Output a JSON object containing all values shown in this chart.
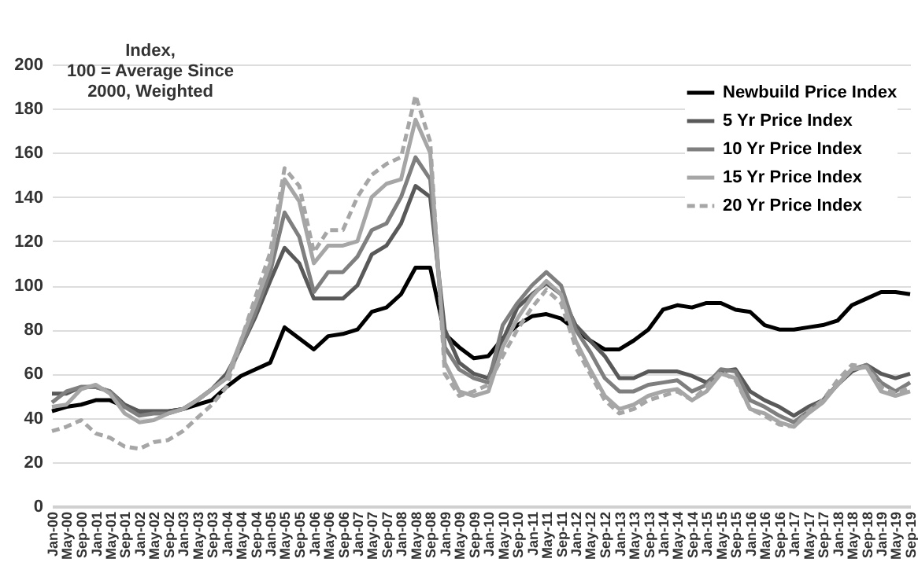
{
  "chart_data": {
    "type": "line",
    "ylabel": "Index,\n100 = Average Since\n2000, Weighted",
    "x": [
      "2000-01",
      "2000-05",
      "2000-09",
      "2001-01",
      "2001-05",
      "2001-09",
      "2002-01",
      "2002-05",
      "2002-09",
      "2003-01",
      "2003-05",
      "2003-09",
      "2004-01",
      "2004-05",
      "2004-09",
      "2005-01",
      "2005-05",
      "2005-09",
      "2006-01",
      "2006-05",
      "2006-09",
      "2007-01",
      "2007-05",
      "2007-09",
      "2008-01",
      "2008-05",
      "2008-09",
      "2009-01",
      "2009-05",
      "2009-09",
      "2010-01",
      "2010-05",
      "2010-09",
      "2011-01",
      "2011-05",
      "2011-09",
      "2012-01",
      "2012-05",
      "2012-09",
      "2013-01",
      "2013-05",
      "2013-09",
      "2014-01",
      "2014-05",
      "2014-09",
      "2015-01",
      "2015-05",
      "2015-09",
      "2016-01",
      "2016-05",
      "2016-09",
      "2017-01",
      "2017-05",
      "2017-09",
      "2018-01",
      "2018-05",
      "2018-09",
      "2019-01",
      "2019-05",
      "2019-09"
    ],
    "series": [
      {
        "name": "Newbuild Price Index",
        "color": "#000000",
        "line_style": "solid",
        "values": [
          43,
          45,
          46,
          48,
          48,
          45,
          43,
          43,
          43,
          44,
          46,
          48,
          54,
          59,
          62,
          65,
          81,
          76,
          71,
          77,
          78,
          80,
          88,
          90,
          96,
          108,
          108,
          78,
          72,
          67,
          68,
          76,
          82,
          86,
          87,
          85,
          80,
          75,
          71,
          71,
          75,
          80,
          89,
          91,
          90,
          92,
          92,
          89,
          88,
          82,
          80,
          80,
          81,
          82,
          84,
          91,
          94,
          97,
          97,
          96
        ]
      },
      {
        "name": "5 Yr Price Index",
        "color": "#595959",
        "line_style": "solid",
        "values": [
          51,
          51,
          54,
          54,
          52,
          46,
          43,
          43,
          43,
          44,
          48,
          53,
          60,
          72,
          86,
          102,
          117,
          110,
          94,
          94,
          94,
          100,
          114,
          118,
          128,
          145,
          140,
          80,
          65,
          60,
          58,
          75,
          90,
          96,
          101,
          96,
          82,
          75,
          68,
          58,
          58,
          61,
          61,
          61,
          59,
          56,
          61,
          62,
          52,
          48,
          45,
          41,
          45,
          48,
          55,
          61,
          64,
          60,
          58,
          60
        ]
      },
      {
        "name": "10 Yr Price Index",
        "color": "#7f7f7f",
        "line_style": "solid",
        "values": [
          47,
          52,
          54,
          54,
          52,
          45,
          41,
          42,
          42,
          44,
          48,
          53,
          58,
          72,
          88,
          106,
          133,
          122,
          97,
          106,
          106,
          113,
          125,
          128,
          140,
          158,
          148,
          72,
          62,
          58,
          56,
          82,
          92,
          100,
          106,
          100,
          80,
          70,
          58,
          52,
          52,
          55,
          56,
          57,
          52,
          55,
          62,
          61,
          48,
          45,
          41,
          38,
          43,
          48,
          55,
          62,
          64,
          56,
          52,
          56
        ]
      },
      {
        "name": "15 Yr Price Index",
        "color": "#a6a6a6",
        "line_style": "solid",
        "values": [
          45,
          46,
          53,
          55,
          51,
          42,
          38,
          39,
          42,
          44,
          48,
          53,
          58,
          75,
          92,
          110,
          148,
          138,
          110,
          118,
          118,
          120,
          140,
          146,
          148,
          175,
          160,
          65,
          52,
          50,
          52,
          72,
          85,
          95,
          102,
          96,
          75,
          62,
          50,
          44,
          46,
          50,
          52,
          53,
          48,
          52,
          60,
          58,
          44,
          42,
          38,
          36,
          42,
          47,
          55,
          62,
          63,
          52,
          50,
          52
        ]
      },
      {
        "name": "20 Yr Price Index",
        "color": "#a6a6a6",
        "line_style": "dashed",
        "values": [
          34,
          36,
          39,
          33,
          31,
          27,
          26,
          29,
          30,
          34,
          40,
          46,
          54,
          75,
          95,
          115,
          153,
          145,
          115,
          125,
          125,
          140,
          150,
          155,
          158,
          186,
          165,
          60,
          50,
          52,
          55,
          68,
          80,
          90,
          98,
          92,
          72,
          60,
          48,
          42,
          44,
          48,
          50,
          52,
          48,
          54,
          61,
          57,
          44,
          41,
          37,
          36,
          43,
          48,
          57,
          64,
          63,
          54,
          51,
          54
        ]
      }
    ],
    "xlim": [
      "2000-01",
      "2019-09"
    ],
    "xticks": [
      {
        "value": "2000-01",
        "label": "Jan-00"
      },
      {
        "value": "2000-05",
        "label": "May-00"
      },
      {
        "value": "2000-09",
        "label": "Sep-00"
      },
      {
        "value": "2001-01",
        "label": "Jan-01"
      },
      {
        "value": "2001-05",
        "label": "May-01"
      },
      {
        "value": "2001-09",
        "label": "Sep-01"
      },
      {
        "value": "2002-01",
        "label": "Jan-02"
      },
      {
        "value": "2002-05",
        "label": "May-02"
      },
      {
        "value": "2002-09",
        "label": "Sep-02"
      },
      {
        "value": "2003-01",
        "label": "Jan-03"
      },
      {
        "value": "2003-05",
        "label": "May-03"
      },
      {
        "value": "2003-09",
        "label": "Sep-03"
      },
      {
        "value": "2004-01",
        "label": "Jan-04"
      },
      {
        "value": "2004-05",
        "label": "May-04"
      },
      {
        "value": "2004-09",
        "label": "Sep-04"
      },
      {
        "value": "2005-01",
        "label": "Jan-05"
      },
      {
        "value": "2005-05",
        "label": "May-05"
      },
      {
        "value": "2005-09",
        "label": "Sep-05"
      },
      {
        "value": "2006-01",
        "label": "Jan-06"
      },
      {
        "value": "2006-05",
        "label": "May-06"
      },
      {
        "value": "2006-09",
        "label": "Sep-06"
      },
      {
        "value": "2007-01",
        "label": "Jan-07"
      },
      {
        "value": "2007-05",
        "label": "May-07"
      },
      {
        "value": "2007-09",
        "label": "Sep-07"
      },
      {
        "value": "2008-01",
        "label": "Jan-08"
      },
      {
        "value": "2008-05",
        "label": "May-08"
      },
      {
        "value": "2008-09",
        "label": "Sep-08"
      },
      {
        "value": "2009-01",
        "label": "Jan-09"
      },
      {
        "value": "2009-05",
        "label": "May-09"
      },
      {
        "value": "2009-09",
        "label": "Sep-09"
      },
      {
        "value": "2010-01",
        "label": "Jan-10"
      },
      {
        "value": "2010-05",
        "label": "May-10"
      },
      {
        "value": "2010-09",
        "label": "Sep-10"
      },
      {
        "value": "2011-01",
        "label": "Jan-11"
      },
      {
        "value": "2011-05",
        "label": "May-11"
      },
      {
        "value": "2011-09",
        "label": "Sep-11"
      },
      {
        "value": "2012-01",
        "label": "Jan-12"
      },
      {
        "value": "2012-05",
        "label": "May-12"
      },
      {
        "value": "2012-09",
        "label": "Sep-12"
      },
      {
        "value": "2013-01",
        "label": "Jan-13"
      },
      {
        "value": "2013-05",
        "label": "May-13"
      },
      {
        "value": "2013-09",
        "label": "Sep-13"
      },
      {
        "value": "2014-01",
        "label": "Jan-14"
      },
      {
        "value": "2014-05",
        "label": "May-14"
      },
      {
        "value": "2014-09",
        "label": "Sep-14"
      },
      {
        "value": "2015-01",
        "label": "Jan-15"
      },
      {
        "value": "2015-05",
        "label": "May-15"
      },
      {
        "value": "2015-09",
        "label": "Sep-15"
      },
      {
        "value": "2016-01",
        "label": "Jan-16"
      },
      {
        "value": "2016-05",
        "label": "May-16"
      },
      {
        "value": "2016-09",
        "label": "Sep-16"
      },
      {
        "value": "2017-01",
        "label": "Jan-17"
      },
      {
        "value": "2017-05",
        "label": "May-17"
      },
      {
        "value": "2017-09",
        "label": "Sep-17"
      },
      {
        "value": "2018-01",
        "label": "Jan-18"
      },
      {
        "value": "2018-05",
        "label": "May-18"
      },
      {
        "value": "2018-09",
        "label": "Sep-18"
      },
      {
        "value": "2019-01",
        "label": "Jan-19"
      },
      {
        "value": "2019-05",
        "label": "May-19"
      },
      {
        "value": "2019-09",
        "label": "Sep-19"
      }
    ],
    "ylim": [
      0,
      200
    ],
    "yticks": [
      0,
      20,
      40,
      60,
      80,
      100,
      120,
      140,
      160,
      180,
      200
    ],
    "grid": "y",
    "legend": "top right"
  }
}
